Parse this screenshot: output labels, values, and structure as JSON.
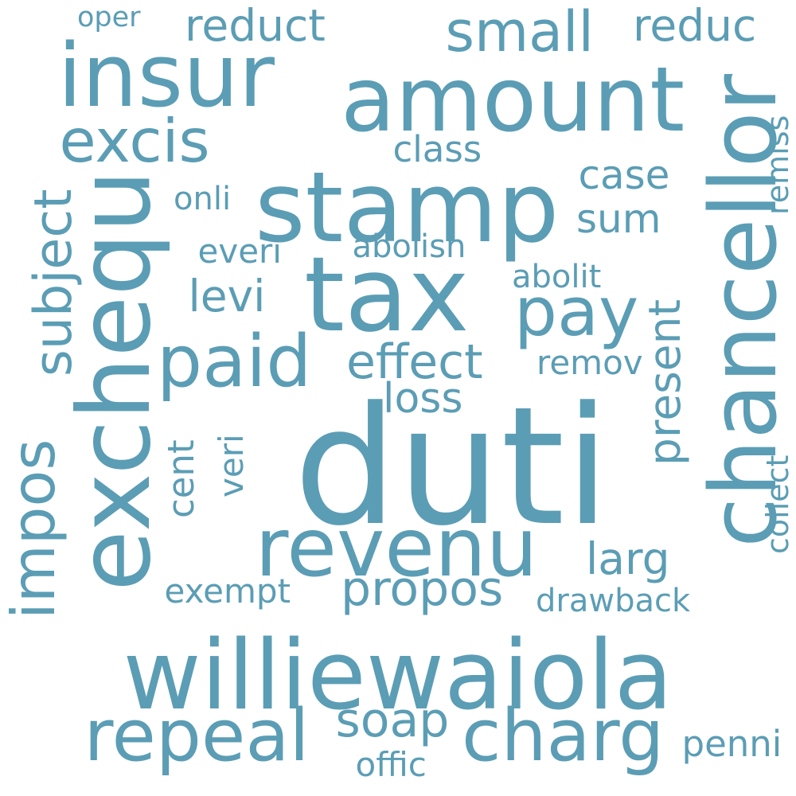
{
  "cloud": {
    "color": "#5b9db5",
    "background": "#ffffff",
    "words": [
      {
        "text": "duti",
        "weight": 1.0
      },
      {
        "text": "williewaiola",
        "weight": 0.78
      },
      {
        "text": "tax",
        "weight": 0.62
      },
      {
        "text": "stamp",
        "weight": 0.62
      },
      {
        "text": "chancellor",
        "weight": 0.58
      },
      {
        "text": "exchequ",
        "weight": 0.56
      },
      {
        "text": "revenu",
        "weight": 0.55
      },
      {
        "text": "insur",
        "weight": 0.54
      },
      {
        "text": "amount",
        "weight": 0.52
      },
      {
        "text": "charg",
        "weight": 0.46
      },
      {
        "text": "repeal",
        "weight": 0.44
      },
      {
        "text": "paid",
        "weight": 0.42
      },
      {
        "text": "pay",
        "weight": 0.4
      },
      {
        "text": "small",
        "weight": 0.38
      },
      {
        "text": "excis",
        "weight": 0.36
      },
      {
        "text": "impos",
        "weight": 0.34
      },
      {
        "text": "subject",
        "weight": 0.32
      },
      {
        "text": "propos",
        "weight": 0.3
      },
      {
        "text": "effect",
        "weight": 0.3
      },
      {
        "text": "reduct",
        "weight": 0.28
      },
      {
        "text": "reduc",
        "weight": 0.27
      },
      {
        "text": "present",
        "weight": 0.27
      },
      {
        "text": "levi",
        "weight": 0.27
      },
      {
        "text": "cent",
        "weight": 0.26
      },
      {
        "text": "soap",
        "weight": 0.26
      },
      {
        "text": "sum",
        "weight": 0.25
      },
      {
        "text": "case",
        "weight": 0.25
      },
      {
        "text": "larg",
        "weight": 0.24
      },
      {
        "text": "loss",
        "weight": 0.24
      },
      {
        "text": "class",
        "weight": 0.23
      },
      {
        "text": "penni",
        "weight": 0.22
      },
      {
        "text": "abolish",
        "weight": 0.2
      },
      {
        "text": "abolit",
        "weight": 0.2
      },
      {
        "text": "offic",
        "weight": 0.2
      },
      {
        "text": "drawback",
        "weight": 0.19
      },
      {
        "text": "remov",
        "weight": 0.19
      },
      {
        "text": "everi",
        "weight": 0.19
      },
      {
        "text": "exempt",
        "weight": 0.19
      },
      {
        "text": "onli",
        "weight": 0.19
      },
      {
        "text": "remiss",
        "weight": 0.17
      },
      {
        "text": "collect",
        "weight": 0.17
      },
      {
        "text": "veri",
        "weight": 0.17
      },
      {
        "text": "oper",
        "weight": 0.17
      }
    ]
  }
}
